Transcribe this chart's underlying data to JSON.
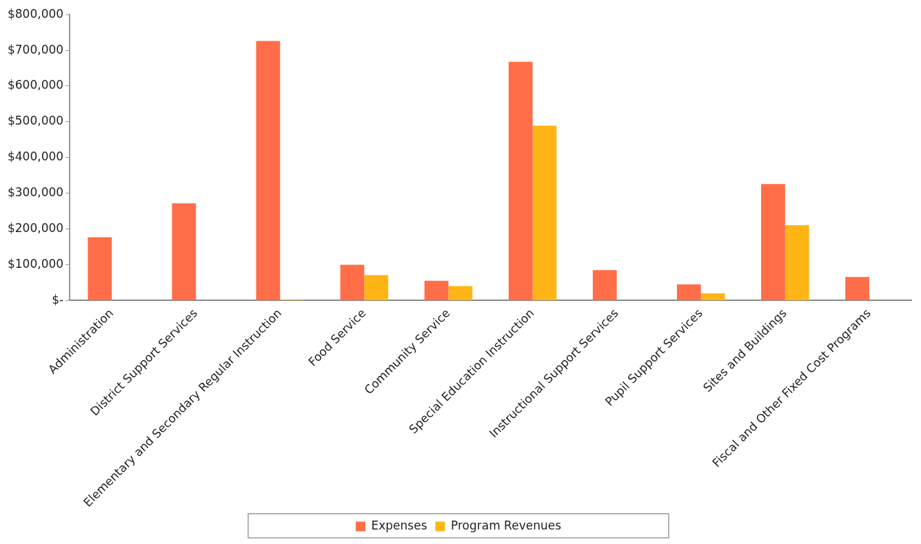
{
  "chart_data": {
    "type": "bar",
    "categories": [
      "Administration",
      "District Support Services",
      "Elementary and Secondary Regular Instruction",
      "Food Service",
      "Community Service",
      "Special Education Instruction",
      "Instructional Support Services",
      "Pupil Support Services",
      "Sites and Buildings",
      "Fiscal and Other Fixed Cost Programs"
    ],
    "series": [
      {
        "name": "Expenses",
        "color": "#ff6e48",
        "values": [
          177000,
          272000,
          726000,
          100000,
          55000,
          668000,
          85000,
          45000,
          326000,
          66000
        ]
      },
      {
        "name": "Program Revenues",
        "color": "#ffb515",
        "values": [
          0,
          0,
          3000,
          71000,
          40000,
          489000,
          0,
          20000,
          211000,
          0
        ]
      }
    ],
    "ylim": [
      0,
      800000
    ],
    "yticks": [
      {
        "value": 0,
        "label": "$-"
      },
      {
        "value": 100000,
        "label": "$100,000"
      },
      {
        "value": 200000,
        "label": "$200,000"
      },
      {
        "value": 300000,
        "label": "$300,000"
      },
      {
        "value": 400000,
        "label": "$400,000"
      },
      {
        "value": 500000,
        "label": "$500,000"
      },
      {
        "value": 600000,
        "label": "$600,000"
      },
      {
        "value": 700000,
        "label": "$700,000"
      },
      {
        "value": 800000,
        "label": "$800,000"
      }
    ],
    "grid": false,
    "legend": "bottom"
  }
}
